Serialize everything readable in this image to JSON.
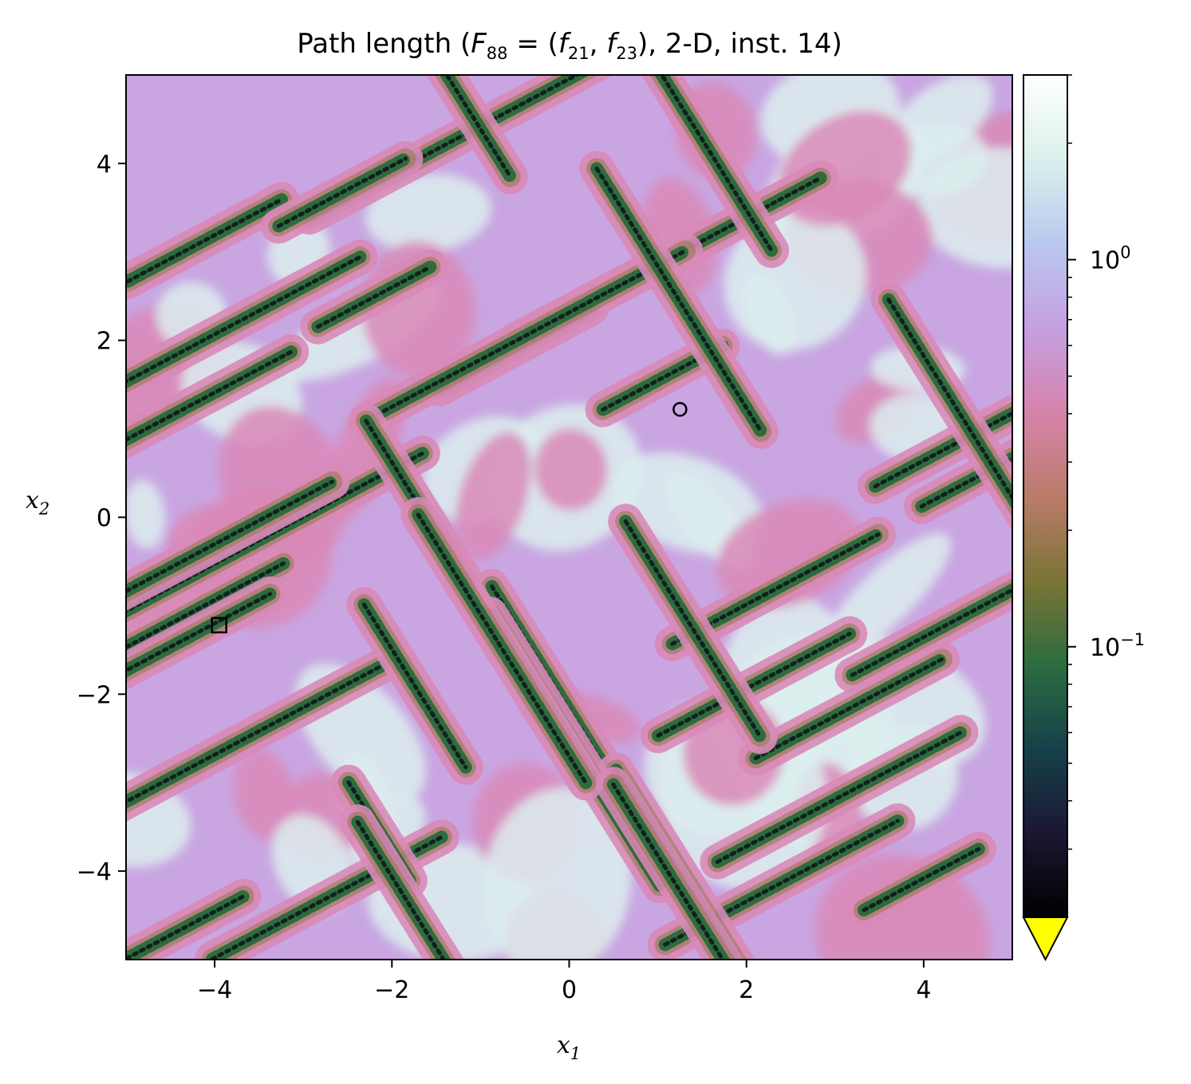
{
  "chart_data": {
    "type": "heatmap",
    "title": {
      "prefix": "Path length (",
      "F": "F",
      "F_sub": "88",
      "eq": " = (",
      "f1": "f",
      "f1_sub": "21",
      "comma": ", ",
      "f2": "f",
      "f2_sub": "23",
      "suffix": "), 2-D, inst. 14)"
    },
    "xlabel": {
      "main": "x",
      "sub": "1"
    },
    "ylabel": {
      "main": "x",
      "sub": "2"
    },
    "xlim": [
      -5,
      5
    ],
    "ylim": [
      -5,
      5
    ],
    "x_ticks": [
      {
        "value": -4,
        "label": "−4"
      },
      {
        "value": -2,
        "label": "−2"
      },
      {
        "value": 0,
        "label": "0"
      },
      {
        "value": 2,
        "label": "2"
      },
      {
        "value": 4,
        "label": "4"
      }
    ],
    "y_ticks": [
      {
        "value": 4,
        "label": "4"
      },
      {
        "value": 2,
        "label": "2"
      },
      {
        "value": 0,
        "label": "0"
      },
      {
        "value": -2,
        "label": "−2"
      },
      {
        "value": -4,
        "label": "−4"
      }
    ],
    "colorbar": {
      "scale": "log",
      "range": [
        0.02,
        3.0
      ],
      "colormap": [
        "#000000",
        "#1b1733",
        "#16414a",
        "#2c6d3f",
        "#7b7436",
        "#bb7c69",
        "#d683ad",
        "#c4a0e0",
        "#b9c8ef",
        "#daf0eb",
        "#ffffff"
      ],
      "ticks": [
        {
          "value": 1,
          "base": "10",
          "exp": "0"
        },
        {
          "value": 0.1,
          "base": "10",
          "exp": "−1"
        }
      ],
      "minor_ticks": [
        0.03,
        0.04,
        0.05,
        0.06,
        0.07,
        0.08,
        0.09,
        0.2,
        0.3,
        0.4,
        0.5,
        0.6,
        0.7,
        0.8,
        0.9,
        2,
        3
      ],
      "extend_min_color": "#ffff00"
    },
    "markers": [
      {
        "type": "square",
        "x": -3.95,
        "y": -1.22
      },
      {
        "type": "circle",
        "x": 1.25,
        "y": 1.22
      }
    ],
    "field_colors": {
      "background": "#c9a6e2",
      "pink": "#d98ab8",
      "light": "#dcefee",
      "valley": "#2f6b3c",
      "core": "#0f2020"
    }
  }
}
